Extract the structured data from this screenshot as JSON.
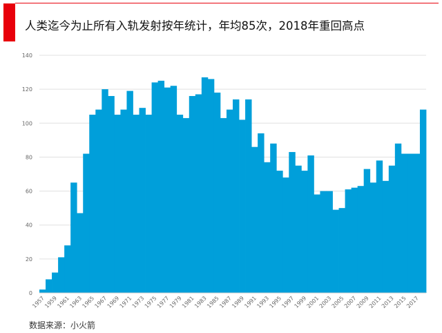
{
  "header": {
    "title": "人类迄今为止所有入轨发射按年统计，年均85次，2018年重回高点"
  },
  "source": "数据来源：小火箭",
  "colors": {
    "bar": "#009fda",
    "accent": "#e8000b",
    "grid": "#e0e0e0"
  },
  "chart_data": {
    "type": "bar",
    "title": "",
    "xlabel": "",
    "ylabel": "",
    "ylim": [
      0,
      140
    ],
    "yticks": [
      0,
      20,
      40,
      60,
      80,
      100,
      120,
      140
    ],
    "grid": true,
    "categories": [
      1957,
      1958,
      1959,
      1960,
      1961,
      1962,
      1963,
      1964,
      1965,
      1966,
      1967,
      1968,
      1969,
      1970,
      1971,
      1972,
      1973,
      1974,
      1975,
      1976,
      1977,
      1978,
      1979,
      1980,
      1981,
      1982,
      1983,
      1984,
      1985,
      1986,
      1987,
      1988,
      1989,
      1990,
      1991,
      1992,
      1993,
      1994,
      1995,
      1996,
      1997,
      1998,
      1999,
      2000,
      2001,
      2002,
      2003,
      2004,
      2005,
      2006,
      2007,
      2008,
      2009,
      2010,
      2011,
      2012,
      2013,
      2014,
      2015,
      2016,
      2017,
      2018
    ],
    "values": [
      2,
      8,
      12,
      21,
      28,
      65,
      47,
      82,
      105,
      108,
      120,
      116,
      105,
      108,
      119,
      105,
      109,
      105,
      124,
      125,
      121,
      122,
      105,
      103,
      116,
      117,
      127,
      126,
      118,
      103,
      108,
      114,
      102,
      114,
      86,
      94,
      77,
      88,
      72,
      68,
      83,
      75,
      72,
      81,
      58,
      60,
      60,
      49,
      50,
      61,
      62,
      63,
      73,
      65,
      78,
      66,
      75,
      88,
      82,
      82,
      82,
      108
    ]
  }
}
